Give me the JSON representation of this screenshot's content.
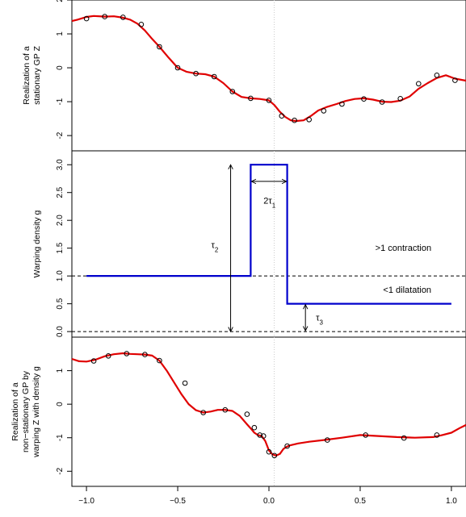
{
  "chart_data": [
    {
      "type": "line",
      "panel": "top",
      "ylabel": [
        "Realization of a",
        "stationary GP Z"
      ],
      "xlim": [
        -1.08,
        1.08
      ],
      "ylim": [
        -2.45,
        2.0
      ],
      "yticks": [
        -2,
        -1,
        0,
        1,
        2
      ],
      "line_color": "#e00000",
      "curve": {
        "x": [
          -1.08,
          -1.05,
          -1.0,
          -0.96,
          -0.9,
          -0.85,
          -0.8,
          -0.76,
          -0.72,
          -0.68,
          -0.64,
          -0.6,
          -0.55,
          -0.5,
          -0.45,
          -0.4,
          -0.35,
          -0.3,
          -0.25,
          -0.2,
          -0.15,
          -0.1,
          -0.05,
          0.0,
          0.03,
          0.06,
          0.09,
          0.12,
          0.15,
          0.19,
          0.23,
          0.27,
          0.32,
          0.37,
          0.42,
          0.47,
          0.52,
          0.57,
          0.62,
          0.67,
          0.72,
          0.77,
          0.82,
          0.87,
          0.92,
          0.97,
          1.02,
          1.08
        ],
        "y": [
          1.38,
          1.42,
          1.5,
          1.53,
          1.51,
          1.52,
          1.48,
          1.42,
          1.3,
          1.1,
          0.85,
          0.62,
          0.3,
          0.0,
          -0.12,
          -0.17,
          -0.19,
          -0.26,
          -0.45,
          -0.7,
          -0.86,
          -0.9,
          -0.92,
          -0.96,
          -1.1,
          -1.3,
          -1.45,
          -1.55,
          -1.57,
          -1.55,
          -1.42,
          -1.26,
          -1.15,
          -1.07,
          -0.98,
          -0.92,
          -0.9,
          -0.94,
          -1.0,
          -1.01,
          -0.97,
          -0.85,
          -0.62,
          -0.45,
          -0.3,
          -0.22,
          -0.32,
          -0.38
        ]
      },
      "points": {
        "x": [
          -1.0,
          -0.9,
          -0.8,
          -0.7,
          -0.6,
          -0.5,
          -0.4,
          -0.3,
          -0.2,
          -0.1,
          0.0,
          0.07,
          0.14,
          0.22,
          0.3,
          0.4,
          0.52,
          0.62,
          0.72,
          0.82,
          0.92,
          1.02
        ],
        "y": [
          1.45,
          1.51,
          1.49,
          1.28,
          0.62,
          0.0,
          -0.17,
          -0.26,
          -0.7,
          -0.9,
          -0.96,
          -1.42,
          -1.55,
          -1.53,
          -1.27,
          -1.07,
          -0.92,
          -1.01,
          -0.91,
          -0.47,
          -0.22,
          -0.37
        ]
      }
    },
    {
      "type": "line",
      "panel": "middle",
      "ylabel": [
        "Warping density g"
      ],
      "xlim": [
        -1.08,
        1.08
      ],
      "ylim": [
        -0.1,
        3.25
      ],
      "yticks": [
        0.0,
        0.5,
        1.0,
        1.5,
        2.0,
        2.5,
        3.0
      ],
      "ytick_labels": [
        "0.0",
        "0.5",
        "1.0",
        "1.5",
        "2.0",
        "2.5",
        "3.0"
      ],
      "line_color": "#0000cc",
      "step": {
        "x": [
          -1.0,
          -0.1,
          -0.1,
          0.1,
          0.1,
          1.0
        ],
        "y": [
          1.0,
          1.0,
          3.0,
          3.0,
          0.5,
          0.5
        ]
      },
      "hlines": [
        0.0,
        1.0
      ],
      "annotations": {
        "contraction": ">1 contraction",
        "dilatation": "<1 dilatation",
        "tau2": "τ",
        "tau2_sub": "2",
        "tau1": "2τ",
        "tau1_sub": "1",
        "tau3": "τ",
        "tau3_sub": "3"
      }
    },
    {
      "type": "line",
      "panel": "bottom",
      "ylabel": [
        "Realization of a",
        "non−stationary GP by",
        "warping Z with density g"
      ],
      "xlim": [
        -1.08,
        1.08
      ],
      "ylim": [
        -2.45,
        2.0
      ],
      "yticks": [
        -2,
        -1,
        0,
        1
      ],
      "xticks": [
        -1.0,
        -0.5,
        0.0,
        0.5,
        1.0
      ],
      "xtick_labels": [
        "−1.0",
        "−0.5",
        "0.0",
        "0.5",
        "1.0"
      ],
      "line_color": "#e00000",
      "curve": {
        "x": [
          -1.08,
          -1.04,
          -1.0,
          -0.95,
          -0.9,
          -0.85,
          -0.8,
          -0.76,
          -0.72,
          -0.68,
          -0.64,
          -0.6,
          -0.56,
          -0.52,
          -0.48,
          -0.44,
          -0.4,
          -0.36,
          -0.32,
          -0.28,
          -0.24,
          -0.2,
          -0.16,
          -0.12,
          -0.1,
          -0.08,
          -0.06,
          -0.04,
          -0.02,
          0.0,
          0.02,
          0.04,
          0.06,
          0.08,
          0.1,
          0.12,
          0.16,
          0.22,
          0.3,
          0.4,
          0.5,
          0.6,
          0.7,
          0.8,
          0.9,
          0.95,
          1.0,
          1.05,
          1.08
        ],
        "y": [
          1.35,
          1.28,
          1.27,
          1.33,
          1.43,
          1.49,
          1.52,
          1.5,
          1.49,
          1.48,
          1.45,
          1.3,
          1.0,
          0.65,
          0.3,
          0.0,
          -0.18,
          -0.25,
          -0.22,
          -0.17,
          -0.17,
          -0.2,
          -0.35,
          -0.6,
          -0.72,
          -0.85,
          -0.92,
          -0.95,
          -1.1,
          -1.38,
          -1.5,
          -1.53,
          -1.48,
          -1.33,
          -1.26,
          -1.22,
          -1.17,
          -1.12,
          -1.07,
          -1.0,
          -0.92,
          -0.95,
          -0.98,
          -1.0,
          -0.98,
          -0.92,
          -0.85,
          -0.7,
          -0.62
        ]
      },
      "points": {
        "x": [
          -0.96,
          -0.88,
          -0.78,
          -0.68,
          -0.6,
          -0.46,
          -0.36,
          -0.24,
          -0.12,
          -0.08,
          -0.05,
          -0.03,
          0.0,
          0.03,
          0.1,
          0.32,
          0.53,
          0.74,
          0.92
        ],
        "y": [
          1.29,
          1.44,
          1.51,
          1.48,
          1.3,
          0.63,
          -0.25,
          -0.17,
          -0.3,
          -0.7,
          -0.92,
          -0.95,
          -1.42,
          -1.53,
          -1.25,
          -1.07,
          -0.92,
          -1.01,
          -0.92
        ]
      }
    }
  ]
}
